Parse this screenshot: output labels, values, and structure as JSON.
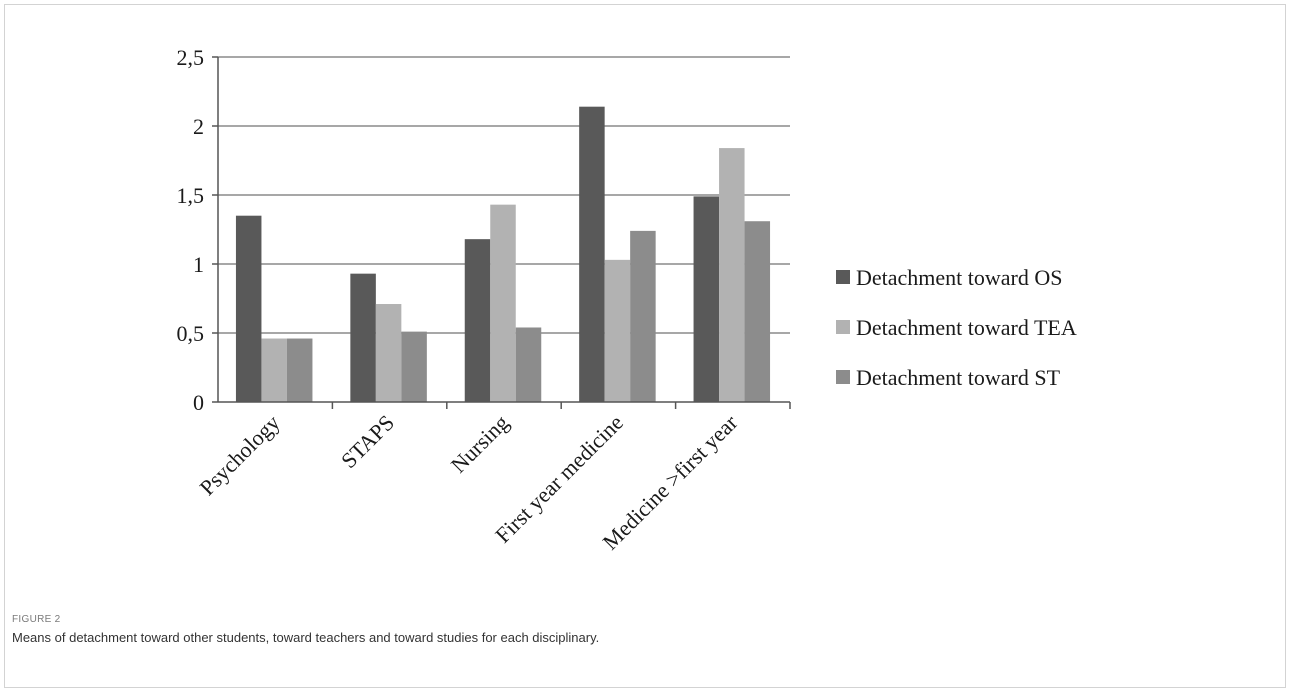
{
  "chart_data": {
    "type": "bar",
    "categories": [
      "Psychology",
      "STAPS",
      "Nursing",
      "First year  medicine",
      "Medicine >first year"
    ],
    "series": [
      {
        "name": "Detachment toward OS",
        "values": [
          1.35,
          0.93,
          1.18,
          2.14,
          1.49
        ],
        "color": "#595959"
      },
      {
        "name": "Detachment toward TEA",
        "values": [
          0.46,
          0.71,
          1.43,
          1.03,
          1.84
        ],
        "color": "#b2b2b2"
      },
      {
        "name": "Detachment toward ST",
        "values": [
          0.46,
          0.51,
          0.54,
          1.24,
          1.31
        ],
        "color": "#8c8c8c"
      }
    ],
    "yticks": [
      "0",
      "0,5",
      "1",
      "1,5",
      "2",
      "2,5"
    ],
    "ylim": [
      0,
      2.5
    ],
    "grid": true,
    "legend_position": "right"
  },
  "figure": {
    "label": "FIGURE 2",
    "caption": "Means of detachment toward other students, toward teachers and toward studies for each disciplinary."
  }
}
